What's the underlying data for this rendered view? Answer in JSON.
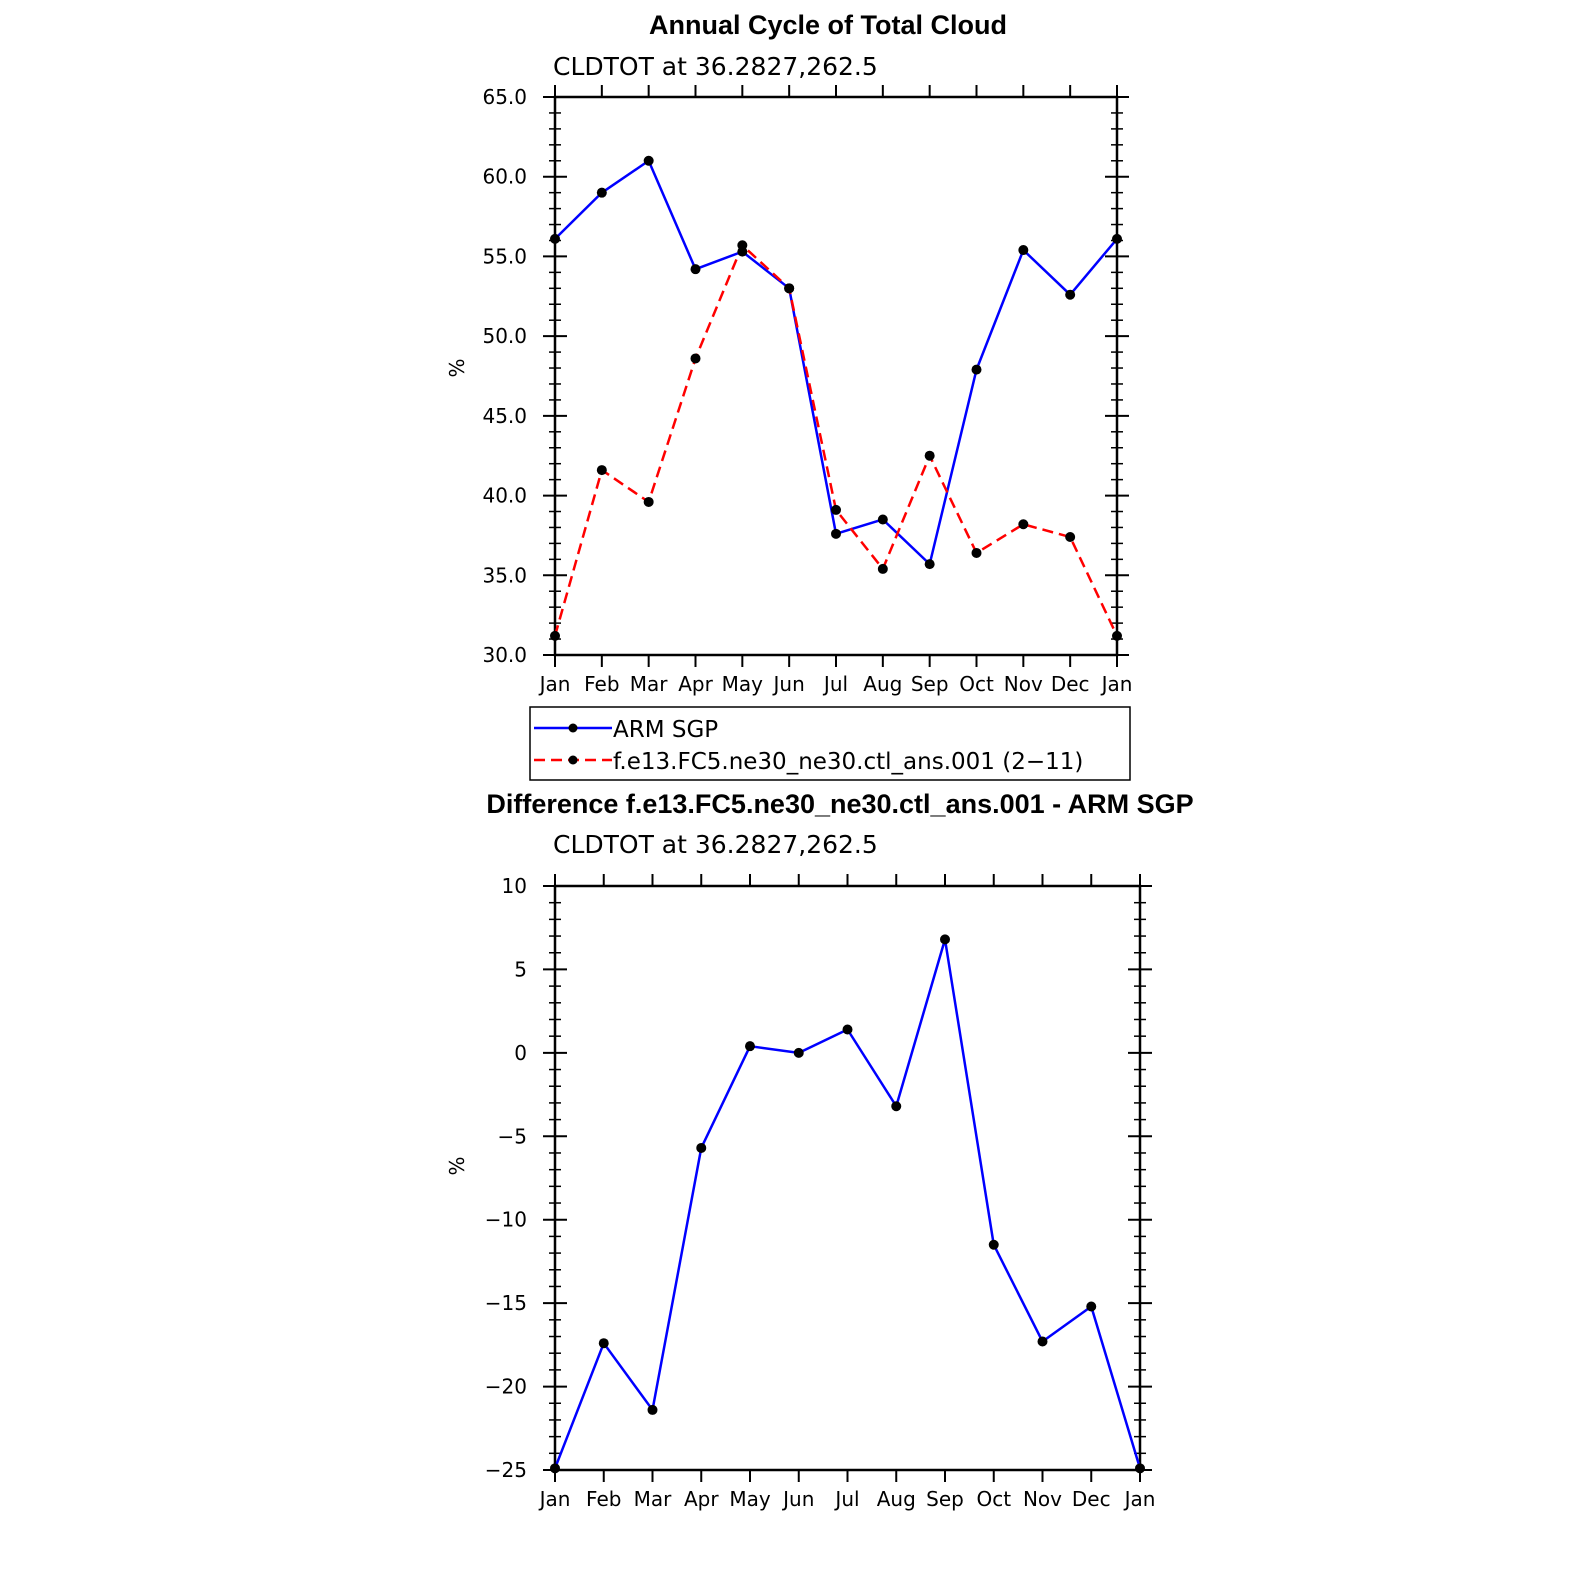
{
  "chart_data": [
    {
      "type": "line",
      "title": "Annual Cycle of Total Cloud",
      "subtitle": "CLDTOT at 36.2827,262.5",
      "xlabel": "",
      "ylabel": "%",
      "categories": [
        "Jan",
        "Feb",
        "Mar",
        "Apr",
        "May",
        "Jun",
        "Jul",
        "Aug",
        "Sep",
        "Oct",
        "Nov",
        "Dec",
        "Jan"
      ],
      "ylim": [
        30.0,
        65.0
      ],
      "yticks": [
        "30.0",
        "35.0",
        "40.0",
        "45.0",
        "50.0",
        "55.0",
        "60.0",
        "65.0"
      ],
      "grid": false,
      "legend_position": "below",
      "series": [
        {
          "name": "ARM SGP",
          "color": "#0000ff",
          "style": "solid",
          "marker": "dot",
          "values": [
            56.1,
            59.0,
            61.0,
            54.2,
            55.3,
            53.0,
            37.6,
            38.5,
            35.7,
            47.9,
            55.4,
            52.6,
            56.1
          ]
        },
        {
          "name": "f.e13.FC5.ne30_ne30.ctl_ans.001 (2−11)",
          "color": "#ff0000",
          "style": "dashed",
          "marker": "dot",
          "values": [
            31.2,
            41.6,
            39.6,
            48.6,
            55.7,
            53.0,
            39.1,
            35.4,
            42.5,
            36.4,
            38.2,
            37.4,
            31.2
          ]
        }
      ]
    },
    {
      "type": "line",
      "title": "Difference f.e13.FC5.ne30_ne30.ctl_ans.001 - ARM SGP",
      "subtitle": "CLDTOT at 36.2827,262.5",
      "xlabel": "",
      "ylabel": "%",
      "categories": [
        "Jan",
        "Feb",
        "Mar",
        "Apr",
        "May",
        "Jun",
        "Jul",
        "Aug",
        "Sep",
        "Oct",
        "Nov",
        "Dec",
        "Jan"
      ],
      "ylim": [
        -25,
        10
      ],
      "yticks": [
        "−25",
        "−20",
        "−15",
        "−10",
        "−5",
        "0",
        "5",
        "10"
      ],
      "grid": false,
      "series": [
        {
          "color": "#0000ff",
          "style": "solid",
          "marker": "dot",
          "values": [
            -24.9,
            -17.4,
            -21.4,
            -5.7,
            0.4,
            0.0,
            1.4,
            -3.2,
            6.8,
            -11.5,
            -17.3,
            -15.2,
            -24.9
          ]
        }
      ]
    }
  ]
}
